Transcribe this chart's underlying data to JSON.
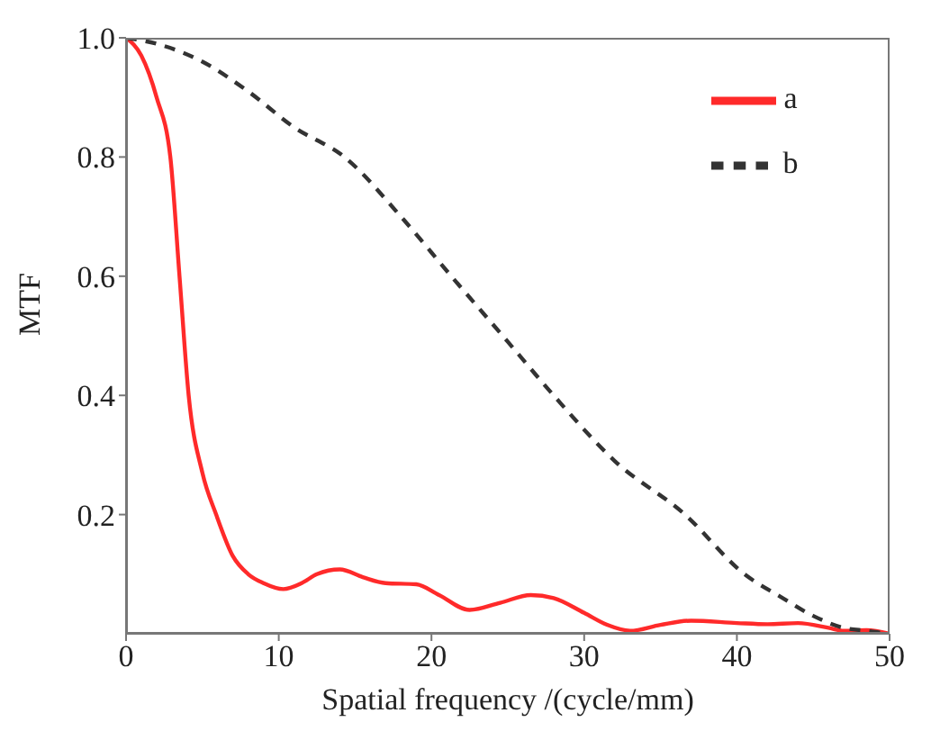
{
  "chart_data": {
    "type": "line",
    "xlabel": "Spatial frequency /(cycle/mm)",
    "ylabel": "MTF",
    "xlim": [
      0,
      50
    ],
    "xticks": [
      0,
      10,
      20,
      30,
      40,
      50
    ],
    "ylim": [
      0,
      1
    ],
    "yticks": [
      0.2,
      0.4,
      0.6,
      {
        "value": 1,
        "label": "1.0"
      },
      0.8
    ],
    "legend": "top right",
    "grid": false,
    "marker": "none",
    "series": [
      {
        "name": "a",
        "color": "#ff2a2a",
        "line_style": "solid",
        "x": [
          0,
          1,
          2,
          2.9,
          3.5,
          4.1,
          5,
          5.9,
          7,
          8,
          9,
          10.3,
          11.5,
          12.5,
          14,
          15.5,
          17,
          19,
          20.5,
          22.5,
          24.5,
          26.5,
          28,
          30,
          31.5,
          33,
          35,
          37,
          40,
          42,
          44,
          46,
          47,
          48.5,
          50
        ],
        "values": [
          1,
          0.97,
          0.9,
          0.8,
          0.6,
          0.4,
          0.27,
          0.2,
          0.13,
          0.1,
          0.085,
          0.075,
          0.085,
          0.1,
          0.108,
          0.095,
          0.085,
          0.083,
          0.065,
          0.04,
          0.052,
          0.065,
          0.06,
          0.035,
          0.015,
          0.005,
          0.015,
          0.022,
          0.018,
          0.016,
          0.018,
          0.01,
          0.005,
          0.006,
          0
        ]
      },
      {
        "name": "b",
        "color": "#333333",
        "line_style": "dashed",
        "x": [
          0,
          2,
          5,
          8,
          11,
          14.3,
          18,
          21.3,
          25,
          28,
          32,
          36.6,
          40.5,
          43,
          45,
          47,
          48.5,
          50
        ],
        "values": [
          1,
          0.99,
          0.96,
          0.91,
          0.85,
          0.8,
          0.7,
          0.6,
          0.49,
          0.4,
          0.29,
          0.2,
          0.1,
          0.06,
          0.03,
          0.01,
          0.005,
          0
        ]
      }
    ]
  }
}
